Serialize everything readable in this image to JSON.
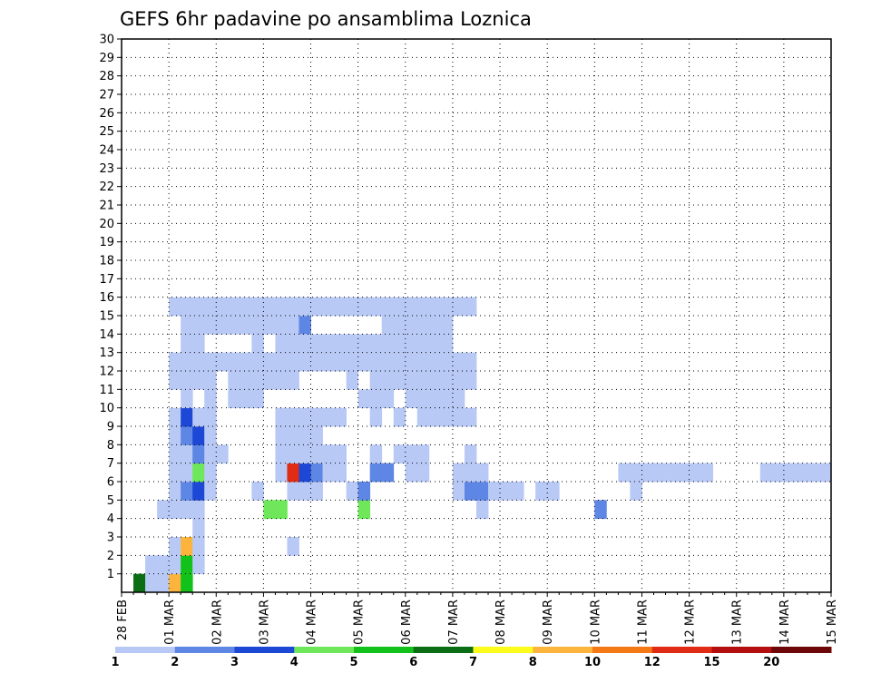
{
  "chart_data": {
    "type": "heatmap",
    "title": "GEFS 6hr padavine po ansamblima Loznica",
    "xlabel": "",
    "ylabel": "",
    "y_ticks": [
      "1",
      "2",
      "3",
      "4",
      "5",
      "6",
      "7",
      "8",
      "9",
      "10",
      "11",
      "12",
      "13",
      "14",
      "15",
      "16",
      "17",
      "18",
      "19",
      "20",
      "21",
      "22",
      "23",
      "24",
      "25",
      "26",
      "27",
      "28",
      "29",
      "30"
    ],
    "x_ticks": [
      "28 FEB",
      "01 MAR",
      "02 MAR",
      "03 MAR",
      "04 MAR",
      "05 MAR",
      "06 MAR",
      "07 MAR",
      "08 MAR",
      "09 MAR",
      "10 MAR",
      "11 MAR",
      "12 MAR",
      "13 MAR",
      "14 MAR",
      "15 MAR"
    ],
    "grid": true,
    "colorbar": {
      "labels": [
        "1",
        "2",
        "3",
        "4",
        "5",
        "6",
        "7",
        "8",
        "10",
        "12",
        "15",
        "20"
      ],
      "colors": [
        "#b9c9f5",
        "#5e86e4",
        "#1d48d6",
        "#6ee85a",
        "#12c21b",
        "#0b6e14",
        "#fcfc1c",
        "#fcb43c",
        "#f47814",
        "#e02c14",
        "#b40e0e",
        "#6e0707"
      ]
    },
    "cells": [
      [
        0,
        1,
        6
      ],
      [
        0,
        2,
        1
      ],
      [
        1,
        2,
        1
      ],
      [
        0,
        3,
        1
      ],
      [
        0,
        4,
        8
      ],
      [
        0,
        5,
        5
      ],
      [
        2,
        14,
        1
      ],
      [
        11,
        14,
        1
      ],
      [
        14,
        14,
        1
      ],
      [
        15,
        14,
        1
      ],
      [
        15,
        15,
        2
      ],
      [
        14,
        15,
        2
      ],
      [
        1,
        3,
        1
      ],
      [
        1,
        4,
        1
      ],
      [
        1,
        5,
        5
      ],
      [
        1,
        6,
        1
      ],
      [
        2,
        4,
        1
      ],
      [
        2,
        5,
        8
      ],
      [
        2,
        6,
        1
      ],
      [
        3,
        6,
        1
      ],
      [
        4,
        3,
        1
      ],
      [
        4,
        4,
        1
      ],
      [
        4,
        5,
        1
      ],
      [
        4,
        6,
        1
      ],
      [
        4,
        12,
        4
      ],
      [
        4,
        13,
        4
      ],
      [
        4,
        20,
        4
      ],
      [
        4,
        30,
        1
      ],
      [
        4,
        40,
        2
      ],
      [
        5,
        4,
        1
      ],
      [
        5,
        5,
        2
      ],
      [
        5,
        6,
        3
      ],
      [
        5,
        7,
        1
      ],
      [
        5,
        11,
        1
      ],
      [
        5,
        14,
        1
      ],
      [
        5,
        15,
        1
      ],
      [
        5,
        16,
        1
      ],
      [
        5,
        19,
        1
      ],
      [
        5,
        20,
        2
      ],
      [
        5,
        28,
        1
      ],
      [
        5,
        29,
        2
      ],
      [
        5,
        30,
        2
      ],
      [
        5,
        31,
        1
      ],
      [
        5,
        32,
        1
      ],
      [
        5,
        33,
        1
      ],
      [
        5,
        35,
        1
      ],
      [
        5,
        36,
        1
      ],
      [
        5,
        43,
        1
      ],
      [
        6,
        4,
        1
      ],
      [
        6,
        5,
        1
      ],
      [
        6,
        6,
        4
      ],
      [
        6,
        7,
        1
      ],
      [
        6,
        13,
        1
      ],
      [
        6,
        14,
        10
      ],
      [
        6,
        15,
        3
      ],
      [
        6,
        16,
        2
      ],
      [
        6,
        17,
        1
      ],
      [
        6,
        18,
        1
      ],
      [
        6,
        21,
        2
      ],
      [
        6,
        22,
        2
      ],
      [
        6,
        24,
        1
      ],
      [
        6,
        25,
        1
      ],
      [
        6,
        28,
        1
      ],
      [
        6,
        29,
        1
      ],
      [
        6,
        30,
        1
      ],
      [
        6,
        42,
        1
      ],
      [
        6,
        43,
        1
      ],
      [
        6,
        44,
        1
      ],
      [
        6,
        45,
        1
      ],
      [
        6,
        46,
        1
      ],
      [
        6,
        47,
        1
      ],
      [
        6,
        48,
        1
      ],
      [
        6,
        49,
        1
      ],
      [
        6,
        54,
        1
      ],
      [
        6,
        55,
        1
      ],
      [
        6,
        56,
        1
      ],
      [
        6,
        57,
        1
      ],
      [
        6,
        58,
        1
      ],
      [
        6,
        59,
        1
      ],
      [
        7,
        4,
        1
      ],
      [
        7,
        5,
        1
      ],
      [
        7,
        6,
        2
      ],
      [
        7,
        7,
        1
      ],
      [
        7,
        8,
        1
      ],
      [
        7,
        13,
        1
      ],
      [
        7,
        14,
        1
      ],
      [
        7,
        15,
        1
      ],
      [
        7,
        16,
        1
      ],
      [
        7,
        17,
        1
      ],
      [
        7,
        18,
        1
      ],
      [
        7,
        21,
        1
      ],
      [
        7,
        23,
        1
      ],
      [
        7,
        24,
        1
      ],
      [
        7,
        25,
        1
      ],
      [
        7,
        29,
        1
      ],
      [
        8,
        4,
        1
      ],
      [
        8,
        5,
        2
      ],
      [
        8,
        6,
        3
      ],
      [
        8,
        7,
        1
      ],
      [
        8,
        13,
        1
      ],
      [
        8,
        14,
        1
      ],
      [
        8,
        15,
        1
      ],
      [
        8,
        16,
        1
      ],
      [
        9,
        4,
        1
      ],
      [
        9,
        5,
        3
      ],
      [
        9,
        6,
        1
      ],
      [
        9,
        7,
        1
      ],
      [
        9,
        13,
        1
      ],
      [
        9,
        14,
        1
      ],
      [
        9,
        15,
        1
      ],
      [
        9,
        16,
        1
      ],
      [
        9,
        17,
        1
      ],
      [
        9,
        18,
        1
      ],
      [
        9,
        21,
        1
      ],
      [
        9,
        23,
        1
      ],
      [
        9,
        25,
        1
      ],
      [
        9,
        26,
        1
      ],
      [
        9,
        27,
        1
      ],
      [
        9,
        28,
        1
      ],
      [
        9,
        29,
        1
      ],
      [
        10,
        5,
        1
      ],
      [
        10,
        7,
        1
      ],
      [
        10,
        9,
        1
      ],
      [
        10,
        10,
        1
      ],
      [
        10,
        11,
        1
      ],
      [
        10,
        20,
        1
      ],
      [
        10,
        21,
        1
      ],
      [
        10,
        22,
        1
      ],
      [
        10,
        24,
        1
      ],
      [
        10,
        25,
        1
      ],
      [
        10,
        26,
        1
      ],
      [
        10,
        27,
        1
      ],
      [
        10,
        28,
        1
      ],
      [
        11,
        4,
        1
      ],
      [
        11,
        5,
        1
      ],
      [
        11,
        6,
        1
      ],
      [
        11,
        7,
        1
      ],
      [
        11,
        9,
        1
      ],
      [
        11,
        10,
        1
      ],
      [
        11,
        11,
        1
      ],
      [
        11,
        12,
        1
      ],
      [
        11,
        13,
        1
      ],
      [
        11,
        19,
        1
      ],
      [
        11,
        21,
        1
      ],
      [
        11,
        22,
        1
      ],
      [
        11,
        23,
        1
      ],
      [
        11,
        24,
        1
      ],
      [
        11,
        25,
        1
      ],
      [
        11,
        26,
        1
      ],
      [
        11,
        27,
        1
      ],
      [
        11,
        28,
        1
      ],
      [
        11,
        29,
        1
      ],
      [
        12,
        4,
        1
      ],
      [
        12,
        5,
        1
      ],
      [
        12,
        6,
        1
      ],
      [
        12,
        7,
        1
      ],
      [
        12,
        8,
        1
      ],
      [
        12,
        9,
        1
      ],
      [
        12,
        10,
        1
      ],
      [
        12,
        11,
        1
      ],
      [
        12,
        12,
        1
      ],
      [
        12,
        13,
        1
      ],
      [
        12,
        14,
        1
      ],
      [
        12,
        15,
        1
      ],
      [
        12,
        16,
        1
      ],
      [
        12,
        17,
        1
      ],
      [
        12,
        18,
        1
      ],
      [
        12,
        19,
        1
      ],
      [
        12,
        20,
        1
      ],
      [
        12,
        21,
        1
      ],
      [
        12,
        22,
        1
      ],
      [
        12,
        23,
        1
      ],
      [
        12,
        24,
        1
      ],
      [
        12,
        25,
        1
      ],
      [
        12,
        26,
        1
      ],
      [
        12,
        27,
        1
      ],
      [
        12,
        28,
        1
      ],
      [
        12,
        29,
        1
      ],
      [
        13,
        5,
        1
      ],
      [
        13,
        6,
        1
      ],
      [
        13,
        11,
        1
      ],
      [
        13,
        13,
        1
      ],
      [
        13,
        14,
        1
      ],
      [
        13,
        15,
        1
      ],
      [
        13,
        16,
        1
      ],
      [
        13,
        17,
        1
      ],
      [
        13,
        18,
        1
      ],
      [
        13,
        19,
        1
      ],
      [
        13,
        20,
        1
      ],
      [
        13,
        21,
        1
      ],
      [
        13,
        22,
        1
      ],
      [
        13,
        23,
        1
      ],
      [
        13,
        24,
        1
      ],
      [
        13,
        25,
        1
      ],
      [
        13,
        26,
        1
      ],
      [
        13,
        27,
        1
      ],
      [
        14,
        5,
        1
      ],
      [
        14,
        6,
        1
      ],
      [
        14,
        7,
        1
      ],
      [
        14,
        8,
        1
      ],
      [
        14,
        9,
        1
      ],
      [
        14,
        10,
        1
      ],
      [
        14,
        11,
        1
      ],
      [
        14,
        12,
        1
      ],
      [
        14,
        13,
        1
      ],
      [
        14,
        22,
        1
      ],
      [
        14,
        23,
        1
      ],
      [
        14,
        24,
        1
      ],
      [
        14,
        25,
        1
      ],
      [
        14,
        26,
        1
      ],
      [
        14,
        27,
        1
      ],
      [
        15,
        4,
        1
      ],
      [
        15,
        5,
        1
      ],
      [
        15,
        6,
        1
      ],
      [
        15,
        7,
        1
      ],
      [
        15,
        8,
        1
      ],
      [
        15,
        9,
        1
      ],
      [
        15,
        10,
        1
      ],
      [
        15,
        11,
        1
      ],
      [
        15,
        12,
        1
      ],
      [
        15,
        13,
        1
      ],
      [
        15,
        14,
        1
      ],
      [
        15,
        15,
        1
      ],
      [
        15,
        16,
        1
      ],
      [
        15,
        17,
        1
      ],
      [
        15,
        18,
        1
      ],
      [
        15,
        19,
        1
      ],
      [
        15,
        20,
        1
      ],
      [
        15,
        21,
        1
      ],
      [
        15,
        22,
        1
      ],
      [
        15,
        23,
        1
      ],
      [
        15,
        24,
        1
      ],
      [
        15,
        25,
        1
      ],
      [
        15,
        26,
        1
      ],
      [
        15,
        27,
        1
      ],
      [
        15,
        28,
        1
      ],
      [
        15,
        29,
        1
      ]
    ]
  }
}
